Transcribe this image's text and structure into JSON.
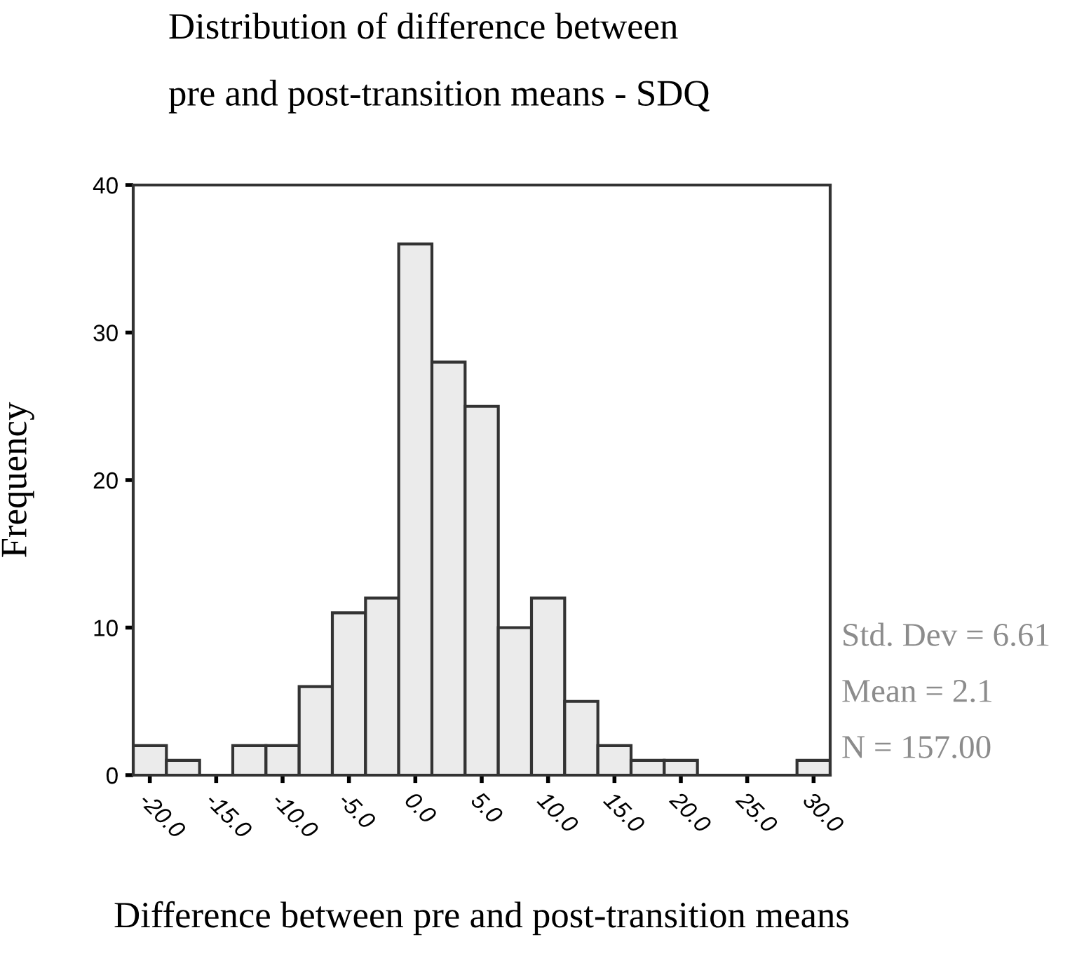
{
  "chart_data": {
    "type": "histogram",
    "title": "Distribution of difference between\npre and post-transition means - SDQ",
    "xlabel": "Difference between pre and post-transition means",
    "ylabel": "Frequency",
    "bins": [
      -21.25,
      -18.75,
      -16.25,
      -13.75,
      -11.25,
      -8.75,
      -6.25,
      -3.75,
      -1.25,
      1.25,
      3.75,
      6.25,
      8.75,
      11.25,
      13.75,
      16.25,
      18.75,
      21.25,
      23.75,
      26.25,
      28.75,
      31.25
    ],
    "values": [
      2,
      1,
      0,
      2,
      2,
      6,
      11,
      12,
      36,
      28,
      25,
      10,
      12,
      5,
      2,
      1,
      1,
      0,
      0,
      0,
      1
    ],
    "color": "#ebebeb",
    "xlim": [
      -21.25,
      31.25
    ],
    "ylim": [
      0,
      40
    ],
    "xticks": [
      {
        "value": -20,
        "label": "-20.0"
      },
      {
        "value": -15,
        "label": "-15.0"
      },
      {
        "value": -10,
        "label": "-10.0"
      },
      {
        "value": -5,
        "label": "-5.0"
      },
      {
        "value": 0,
        "label": "0.0"
      },
      {
        "value": 5,
        "label": "5.0"
      },
      {
        "value": 10,
        "label": "10.0"
      },
      {
        "value": 15,
        "label": "15.0"
      },
      {
        "value": 20,
        "label": "20.0"
      },
      {
        "value": 25,
        "label": "25.0"
      },
      {
        "value": 30,
        "label": "30.0"
      }
    ],
    "yticks": [
      0,
      10,
      20,
      30,
      40
    ],
    "grid": false,
    "legend": false,
    "annotations": [
      "Std. Dev = 6.61",
      "Mean = 2.1",
      "N = 157.00"
    ]
  }
}
